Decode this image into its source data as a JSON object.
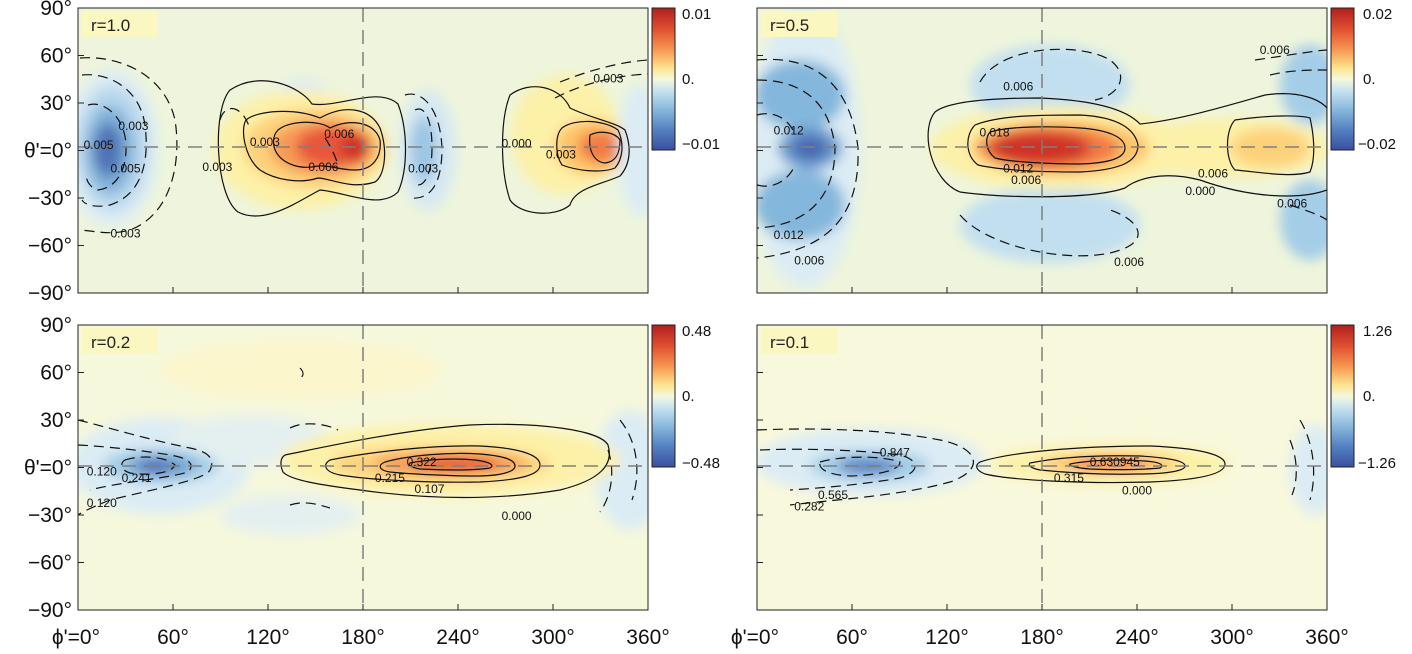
{
  "chart_data": [
    {
      "type": "heatmap",
      "label": "r=1.0",
      "xlabel": "ϕ'",
      "ylabel": "θ'",
      "xlim": [
        0,
        360
      ],
      "ylim": [
        -90,
        90
      ],
      "colorbar": {
        "ticks": [
          "0.01",
          "0.",
          "−0.01"
        ],
        "min": -0.01,
        "max": 0.01
      },
      "contour_labels": [
        {
          "text": "0.003",
          "phi": 35,
          "theta": 13
        },
        {
          "text": "0.005",
          "phi": 13,
          "theta": 1
        },
        {
          "text": "0.005",
          "phi": 30,
          "theta": -14
        },
        {
          "text": "0.003",
          "phi": 30,
          "theta": -55
        },
        {
          "text": "0.003",
          "phi": 88,
          "theta": -13
        },
        {
          "text": "0.003",
          "phi": 118,
          "theta": 3
        },
        {
          "text": "0.006",
          "phi": 165,
          "theta": 8
        },
        {
          "text": "0.006",
          "phi": 155,
          "theta": -13
        },
        {
          "text": "0.003",
          "phi": 218,
          "theta": -14
        },
        {
          "text": "0.000",
          "phi": 277,
          "theta": 2
        },
        {
          "text": "0.003",
          "phi": 305,
          "theta": -5
        },
        {
          "text": "0.003",
          "phi": 335,
          "theta": 43
        }
      ]
    },
    {
      "type": "heatmap",
      "label": "r=0.5",
      "xlabel": "ϕ'",
      "ylabel": "θ'",
      "xlim": [
        0,
        360
      ],
      "ylim": [
        -90,
        90
      ],
      "colorbar": {
        "ticks": [
          "0.02",
          "0.",
          "−0.02"
        ],
        "min": -0.02,
        "max": 0.02
      },
      "contour_labels": [
        {
          "text": "0.012",
          "phi": 20,
          "theta": 10
        },
        {
          "text": "0.012",
          "phi": 20,
          "theta": -56
        },
        {
          "text": "0.006",
          "phi": 33,
          "theta": -72
        },
        {
          "text": "0.006",
          "phi": 165,
          "theta": 38
        },
        {
          "text": "0.018",
          "phi": 150,
          "theta": 9
        },
        {
          "text": "0.012",
          "phi": 165,
          "theta": -14
        },
        {
          "text": "0.006",
          "phi": 170,
          "theta": -21
        },
        {
          "text": "0.006",
          "phi": 235,
          "theta": -73
        },
        {
          "text": "0.006",
          "phi": 327,
          "theta": 61
        },
        {
          "text": "0.006",
          "phi": 288,
          "theta": -17
        },
        {
          "text": "0.000",
          "phi": 280,
          "theta": -28
        },
        {
          "text": "0.006",
          "phi": 338,
          "theta": -36
        }
      ]
    },
    {
      "type": "heatmap",
      "label": "r=0.2",
      "xlabel": "ϕ'",
      "ylabel": "θ'",
      "xlim": [
        0,
        360
      ],
      "ylim": [
        -90,
        90
      ],
      "colorbar": {
        "ticks": [
          "0.48",
          "0.",
          "−0.48"
        ],
        "min": -0.48,
        "max": 0.48
      },
      "contour_labels": [
        {
          "text": "0.120",
          "phi": 15,
          "theta": -5
        },
        {
          "text": "0.241",
          "phi": 37,
          "theta": -9
        },
        {
          "text": "0.120",
          "phi": 15,
          "theta": -25
        },
        {
          "text": "0.322",
          "phi": 217,
          "theta": 1
        },
        {
          "text": "0.215",
          "phi": 197,
          "theta": -9
        },
        {
          "text": "0.107",
          "phi": 222,
          "theta": -16
        },
        {
          "text": "0.000",
          "phi": 277,
          "theta": -33
        }
      ]
    },
    {
      "type": "heatmap",
      "label": "r=0.1",
      "xlabel": "ϕ'",
      "ylabel": "θ'",
      "xlim": [
        0,
        360
      ],
      "ylim": [
        -90,
        90
      ],
      "colorbar": {
        "ticks": [
          "1.26",
          "0.",
          "−1.26"
        ],
        "min": -1.26,
        "max": 1.26
      },
      "contour_labels": [
        {
          "text": "0.847",
          "phi": 87,
          "theta": 7
        },
        {
          "text": "0.565",
          "phi": 48,
          "theta": -20
        },
        {
          "text": "0.282",
          "phi": 33,
          "theta": -27
        },
        {
          "text": "0.630945",
          "phi": 226,
          "theta": 1
        },
        {
          "text": "0.315",
          "phi": 197,
          "theta": -9
        },
        {
          "text": "0.000",
          "phi": 240,
          "theta": -17
        }
      ]
    }
  ],
  "axes": {
    "y_ticks": [
      "90°",
      "60°",
      "30°",
      "θ'=0°",
      "−30°",
      "−60°",
      "−90°"
    ],
    "x_ticks": [
      "ϕ'=0°",
      "60°",
      "120°",
      "180°",
      "240°",
      "300°",
      "360°"
    ]
  },
  "colors": {
    "background": "#eef5dc",
    "positive": [
      "#fdf3b0",
      "#fde28a",
      "#fdc469",
      "#f9a155",
      "#f27a44",
      "#e35434",
      "#cf3027",
      "#b5201f"
    ],
    "negative": [
      "#dcecf4",
      "#c2dff0",
      "#a4cde8",
      "#84b7dc",
      "#6a9ccf",
      "#5682c1",
      "#4868b2",
      "#3b51a3"
    ]
  }
}
